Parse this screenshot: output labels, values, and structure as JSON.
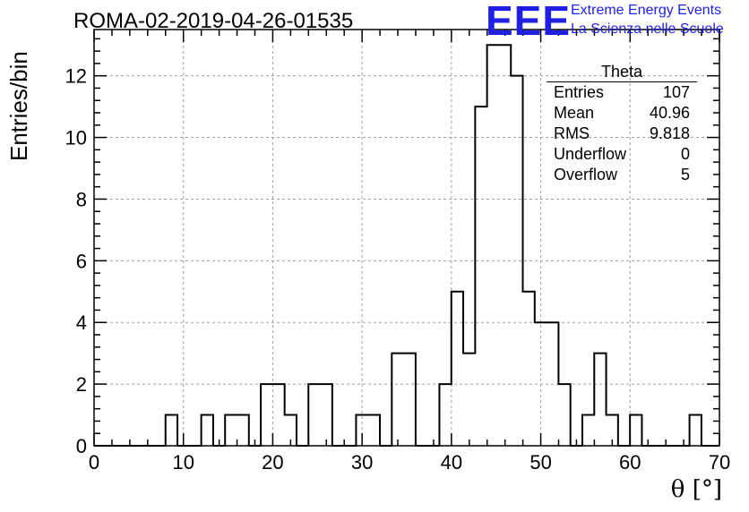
{
  "header": {
    "title": "ROMA-02-2019-04-26-01535",
    "logo_text": "EEE",
    "brand_line1": "Extreme Energy Events",
    "brand_line2": "La Scienza nelle Scuole"
  },
  "colors": {
    "brand": "#1f1fe6",
    "line": "#000000",
    "grid": "#a0a0a0"
  },
  "stats_box": {
    "title": "Theta",
    "rows": [
      {
        "label": "Entries",
        "value": "107"
      },
      {
        "label": "Mean",
        "value": "40.96"
      },
      {
        "label": "RMS",
        "value": "9.818"
      },
      {
        "label": "Underflow",
        "value": "0"
      },
      {
        "label": "Overflow",
        "value": "5"
      }
    ]
  },
  "chart_data": {
    "type": "bar",
    "histogram": true,
    "title": "ROMA-02-2019-04-26-01535",
    "xlabel": "θ [°]",
    "ylabel": "Entries/bin",
    "xlim": [
      0,
      70
    ],
    "ylim": [
      0,
      13.5
    ],
    "bin_width": 1.333,
    "grid": true,
    "x_ticks": [
      0,
      10,
      20,
      30,
      40,
      50,
      60,
      70
    ],
    "y_ticks": [
      0,
      2,
      4,
      6,
      8,
      10,
      12
    ],
    "values": [
      0,
      0,
      0,
      0,
      0,
      0,
      1,
      0,
      0,
      1,
      0,
      1,
      1,
      0,
      2,
      2,
      1,
      0,
      2,
      2,
      0,
      0,
      1,
      1,
      0,
      3,
      3,
      0,
      0,
      2,
      5,
      3,
      11,
      13,
      13,
      12,
      5,
      4,
      4,
      2,
      0,
      1,
      3,
      1,
      0,
      1,
      0,
      0,
      0,
      0,
      1,
      0,
      0
    ]
  }
}
